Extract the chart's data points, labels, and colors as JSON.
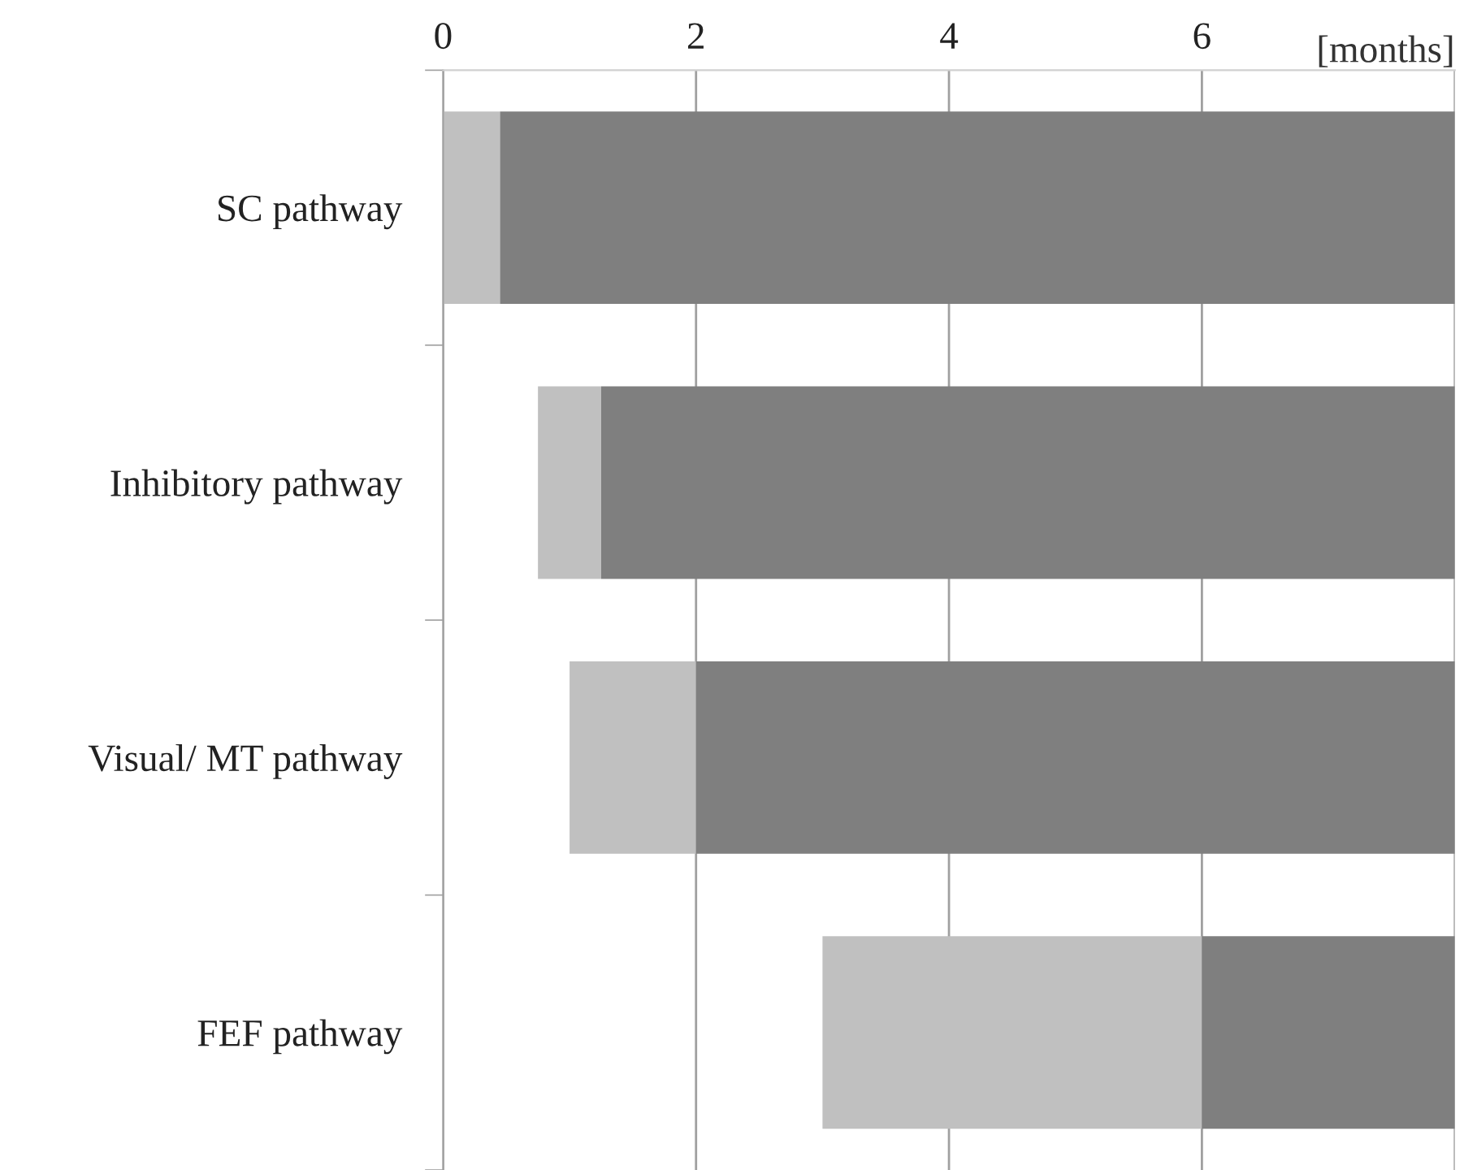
{
  "chart_data": {
    "type": "bar",
    "orientation": "horizontal",
    "categories": [
      "SC pathway",
      "Inhibitory pathway",
      "Visual/ MT pathway",
      "FEF pathway"
    ],
    "series": [
      {
        "color": "#c0c0c0",
        "base": [
          0,
          0.75,
          1,
          3
        ],
        "values": [
          0.45,
          0.5,
          1,
          3
        ]
      },
      {
        "color": "#7f7f7f",
        "base": [
          0.45,
          1.25,
          2,
          6
        ],
        "values": [
          7.55,
          6.75,
          6,
          2
        ]
      }
    ],
    "xlabel": "[months]",
    "xlim": [
      0,
      8
    ],
    "xticks": [
      0,
      2,
      4,
      6,
      {
        "value": 8,
        "label": null
      }
    ],
    "grid": "x"
  }
}
